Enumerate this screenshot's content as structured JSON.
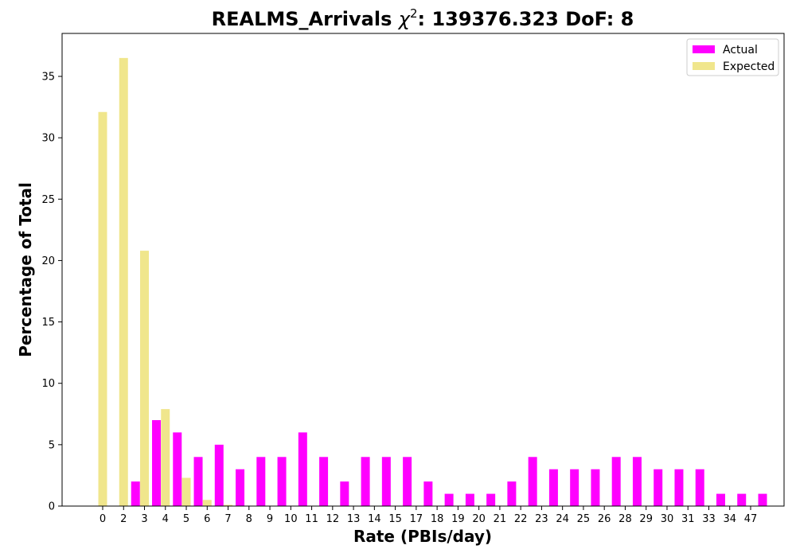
{
  "chart_data": {
    "type": "bar",
    "title_prefix": "REALMS_Arrivals ",
    "title_chi": "χ",
    "title_sup": "2",
    "title_suffix": ": 139376.323 DoF: 8",
    "xlabel": "Rate (PBIs/day)",
    "ylabel": "Percentage of Total",
    "ylim": [
      0,
      38.5
    ],
    "yticks": [
      0,
      5,
      10,
      15,
      20,
      25,
      30,
      35
    ],
    "legend_position": "top-right",
    "categories": [
      "0",
      "2",
      "3",
      "4",
      "5",
      "6",
      "7",
      "8",
      "9",
      "10",
      "11",
      "12",
      "13",
      "14",
      "15",
      "17",
      "18",
      "19",
      "20",
      "21",
      "22",
      "23",
      "24",
      "25",
      "26",
      "28",
      "29",
      "30",
      "31",
      "33",
      "34",
      "47"
    ],
    "series": [
      {
        "name": "Actual",
        "color": "#ff00ff",
        "values": [
          0,
          2,
          7,
          6,
          4,
          5,
          3,
          4,
          4,
          6,
          4,
          2,
          4,
          4,
          4,
          2,
          1,
          1,
          1,
          2,
          4,
          3,
          3,
          3,
          4,
          4,
          3,
          3,
          3,
          1,
          1,
          1
        ]
      },
      {
        "name": "Expected",
        "color": "#f0e68c",
        "values": [
          32.1,
          36.5,
          20.8,
          7.9,
          2.3,
          0.5,
          0.1,
          0,
          0,
          0,
          0,
          0,
          0,
          0,
          0,
          0,
          0,
          0,
          0,
          0,
          0,
          0,
          0,
          0,
          0,
          0,
          0,
          0,
          0,
          0,
          0,
          0
        ]
      }
    ]
  }
}
